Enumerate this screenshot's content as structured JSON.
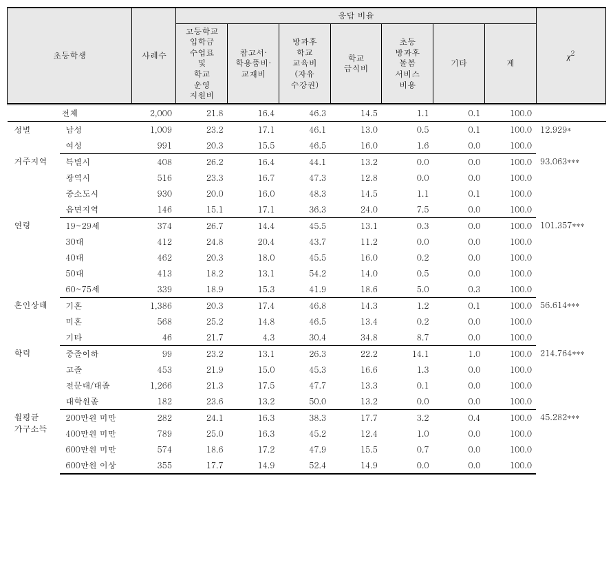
{
  "header": {
    "rowLabel": "초등학생",
    "cases": "사례수",
    "responseRatio": "응답 비율",
    "chi2": "χ",
    "cols": [
      "고등학교\n입학금\n수업료\n및\n학교\n운영\n지원비",
      "참고서·\n학용품비·\n교재비",
      "방과후\n학교\n교육비\n(자유\n수강권)",
      "학교\n급식비",
      "초등\n방과후\n돌봄\n서비스\n비용",
      "기타",
      "계"
    ]
  },
  "groups": [
    {
      "cat": "전체",
      "chi": "",
      "rows": [
        {
          "sub": "",
          "n": "2,000",
          "v": [
            "21.8",
            "16.4",
            "46.3",
            "14.5",
            "1.1",
            "0.1",
            "100.0"
          ]
        }
      ],
      "merged": true
    },
    {
      "cat": "성별",
      "chi": "12.929*",
      "rows": [
        {
          "sub": "남성",
          "n": "1,009",
          "v": [
            "23.2",
            "17.1",
            "46.1",
            "13.0",
            "0.5",
            "0.1",
            "100.0"
          ]
        },
        {
          "sub": "여성",
          "n": "991",
          "v": [
            "20.3",
            "15.5",
            "46.5",
            "16.0",
            "1.6",
            "0.0",
            "100.0"
          ]
        }
      ]
    },
    {
      "cat": "거주지역",
      "chi": "93.063***",
      "rows": [
        {
          "sub": "특별시",
          "n": "408",
          "v": [
            "26.2",
            "16.4",
            "44.1",
            "13.2",
            "0.0",
            "0.0",
            "100.0"
          ]
        },
        {
          "sub": "광역시",
          "n": "516",
          "v": [
            "23.3",
            "16.7",
            "47.3",
            "12.8",
            "0.0",
            "0.0",
            "100.0"
          ]
        },
        {
          "sub": "중소도시",
          "n": "930",
          "v": [
            "20.0",
            "16.0",
            "48.3",
            "14.5",
            "1.1",
            "0.1",
            "100.0"
          ]
        },
        {
          "sub": "읍면지역",
          "n": "146",
          "v": [
            "15.1",
            "17.1",
            "36.3",
            "24.0",
            "7.5",
            "0.0",
            "100.0"
          ]
        }
      ]
    },
    {
      "cat": "연령",
      "chi": "101.357***",
      "rows": [
        {
          "sub": "19~29세",
          "n": "374",
          "v": [
            "26.7",
            "14.4",
            "45.5",
            "13.1",
            "0.3",
            "0.0",
            "100.0"
          ]
        },
        {
          "sub": "30대",
          "n": "412",
          "v": [
            "24.8",
            "20.4",
            "43.7",
            "11.2",
            "0.0",
            "0.0",
            "100.0"
          ]
        },
        {
          "sub": "40대",
          "n": "462",
          "v": [
            "20.3",
            "18.0",
            "45.5",
            "16.0",
            "0.2",
            "0.0",
            "100.0"
          ]
        },
        {
          "sub": "50대",
          "n": "413",
          "v": [
            "18.2",
            "13.1",
            "54.2",
            "14.0",
            "0.5",
            "0.0",
            "100.0"
          ]
        },
        {
          "sub": "60~75세",
          "n": "339",
          "v": [
            "18.9",
            "15.3",
            "41.9",
            "18.6",
            "5.0",
            "0.3",
            "100.0"
          ]
        }
      ]
    },
    {
      "cat": "혼인상태",
      "chi": "56.614***",
      "rows": [
        {
          "sub": "기혼",
          "n": "1,386",
          "v": [
            "20.3",
            "17.4",
            "46.8",
            "14.3",
            "1.2",
            "0.1",
            "100.0"
          ]
        },
        {
          "sub": "미혼",
          "n": "568",
          "v": [
            "25.2",
            "14.8",
            "46.5",
            "13.4",
            "0.2",
            "0.0",
            "100.0"
          ]
        },
        {
          "sub": "기타",
          "n": "46",
          "v": [
            "21.7",
            "4.3",
            "30.4",
            "34.8",
            "8.7",
            "0.0",
            "100.0"
          ]
        }
      ]
    },
    {
      "cat": "학력",
      "chi": "214.764***",
      "rows": [
        {
          "sub": "중졸이하",
          "n": "99",
          "v": [
            "23.2",
            "13.1",
            "26.3",
            "22.2",
            "14.1",
            "1.0",
            "100.0"
          ]
        },
        {
          "sub": "고졸",
          "n": "453",
          "v": [
            "21.9",
            "15.0",
            "45.3",
            "16.6",
            "1.3",
            "0.0",
            "100.0"
          ]
        },
        {
          "sub": "전문대/대졸",
          "n": "1,266",
          "v": [
            "21.3",
            "17.5",
            "47.7",
            "13.3",
            "0.1",
            "0.0",
            "100.0"
          ]
        },
        {
          "sub": "대학원졸",
          "n": "182",
          "v": [
            "23.6",
            "13.2",
            "50.0",
            "13.2",
            "0.0",
            "0.0",
            "100.0"
          ]
        }
      ]
    },
    {
      "cat": "월평균\n가구소득",
      "chi": "45.282***",
      "rows": [
        {
          "sub": "200만원 미만",
          "n": "282",
          "v": [
            "24.1",
            "16.3",
            "38.3",
            "17.7",
            "3.2",
            "0.4",
            "100.0"
          ]
        },
        {
          "sub": "400만원 미만",
          "n": "789",
          "v": [
            "25.0",
            "16.3",
            "45.2",
            "12.4",
            "1.0",
            "0.0",
            "100.0"
          ]
        },
        {
          "sub": "600만원 미만",
          "n": "574",
          "v": [
            "18.6",
            "17.2",
            "47.9",
            "15.5",
            "0.7",
            "0.0",
            "100.0"
          ]
        },
        {
          "sub": "600만원 이상",
          "n": "355",
          "v": [
            "17.7",
            "14.9",
            "52.4",
            "14.9",
            "0.0",
            "0.0",
            "100.0"
          ]
        }
      ]
    }
  ]
}
